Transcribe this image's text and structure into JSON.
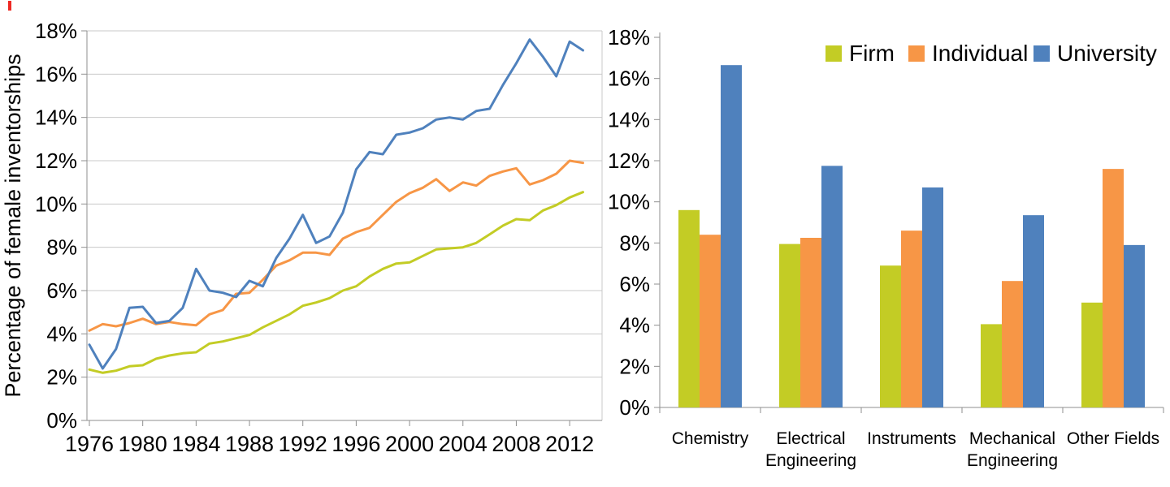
{
  "page": {
    "background": "#ffffff"
  },
  "colors": {
    "firm": "#c3cc25",
    "individual": "#f79646",
    "university": "#4f81bd",
    "gridline": "#c8c8c8",
    "axis": "#8f8f8f",
    "text": "#000000",
    "stray_mark": "#ee2a24"
  },
  "legend": {
    "items": [
      "Firm",
      "Individual",
      "University"
    ]
  },
  "chart_data": [
    {
      "id": "female-inventorship-trend",
      "type": "line",
      "title": "",
      "xlabel": "",
      "ylabel": "Percentage of female inventorships",
      "ylim": [
        0,
        18
      ],
      "yticks": [
        0,
        2,
        4,
        6,
        8,
        10,
        12,
        14,
        16,
        18
      ],
      "ytick_suffix": "%",
      "xticks": [
        1976,
        1980,
        1984,
        1988,
        1992,
        1996,
        2000,
        2004,
        2008,
        2012
      ],
      "grid": true,
      "legend_position": "none",
      "x": [
        1976,
        1977,
        1978,
        1979,
        1980,
        1981,
        1982,
        1983,
        1984,
        1985,
        1986,
        1987,
        1988,
        1989,
        1990,
        1991,
        1992,
        1993,
        1994,
        1995,
        1996,
        1997,
        1998,
        1999,
        2000,
        2001,
        2002,
        2003,
        2004,
        2005,
        2006,
        2007,
        2008,
        2009,
        2010,
        2011,
        2012,
        2013
      ],
      "series": [
        {
          "name": "Firm",
          "color_key": "firm",
          "values": [
            2.35,
            2.2,
            2.3,
            2.5,
            2.55,
            2.85,
            3.0,
            3.1,
            3.15,
            3.55,
            3.65,
            3.8,
            3.95,
            4.3,
            4.6,
            4.9,
            5.3,
            5.45,
            5.65,
            6.0,
            6.2,
            6.65,
            7.0,
            7.25,
            7.3,
            7.6,
            7.9,
            7.95,
            8.0,
            8.2,
            8.6,
            9.0,
            9.3,
            9.25,
            9.7,
            9.95,
            10.3,
            10.55
          ]
        },
        {
          "name": "Individual",
          "color_key": "individual",
          "values": [
            4.15,
            4.45,
            4.35,
            4.5,
            4.7,
            4.45,
            4.55,
            4.45,
            4.4,
            4.9,
            5.1,
            5.85,
            5.9,
            6.5,
            7.15,
            7.4,
            7.75,
            7.75,
            7.65,
            8.4,
            8.7,
            8.9,
            9.5,
            10.1,
            10.5,
            10.75,
            11.15,
            10.6,
            11.0,
            10.85,
            11.3,
            11.5,
            11.65,
            10.9,
            11.1,
            11.4,
            12.0,
            11.9
          ]
        },
        {
          "name": "University",
          "color_key": "university",
          "values": [
            3.5,
            2.4,
            3.3,
            5.2,
            5.25,
            4.5,
            4.6,
            5.2,
            7.0,
            6.0,
            5.9,
            5.7,
            6.45,
            6.2,
            7.5,
            8.4,
            9.5,
            8.2,
            8.5,
            9.6,
            11.6,
            12.4,
            12.3,
            13.2,
            13.3,
            13.5,
            13.9,
            14.0,
            13.9,
            14.3,
            14.4,
            15.5,
            16.5,
            17.6,
            16.8,
            15.9,
            17.5,
            17.1
          ]
        }
      ]
    },
    {
      "id": "female-inventorship-by-field",
      "type": "bar",
      "title": "",
      "xlabel": "",
      "ylabel": "",
      "ylim": [
        0,
        18
      ],
      "yticks": [
        0,
        2,
        4,
        6,
        8,
        10,
        12,
        14,
        16,
        18
      ],
      "ytick_suffix": "%",
      "grid": false,
      "legend_position": "top",
      "categories": [
        "Chemistry",
        "Electrical Engineering",
        "Instruments",
        "Mechanical Engineering",
        "Other Fields"
      ],
      "category_label_lines": [
        [
          "Chemistry"
        ],
        [
          "Electrical",
          "Engineering"
        ],
        [
          "Instruments"
        ],
        [
          "Mechanical",
          "Engineering"
        ],
        [
          "Other Fields"
        ]
      ],
      "series": [
        {
          "name": "Firm",
          "color_key": "firm",
          "values": [
            9.6,
            7.95,
            6.9,
            4.05,
            5.1
          ]
        },
        {
          "name": "Individual",
          "color_key": "individual",
          "values": [
            8.4,
            8.25,
            8.6,
            6.15,
            11.6
          ]
        },
        {
          "name": "University",
          "color_key": "university",
          "values": [
            16.65,
            11.75,
            10.7,
            9.35,
            7.9
          ]
        }
      ]
    }
  ]
}
